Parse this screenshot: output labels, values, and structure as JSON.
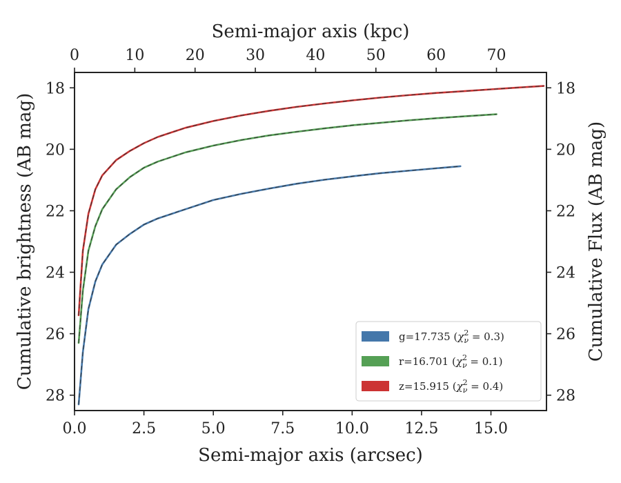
{
  "chart_data": {
    "type": "line",
    "xlabel": "Semi-major axis (arcsec)",
    "x2label": "Semi-major axis (kpc)",
    "ylabel": "Cumulative brightness (AB mag)",
    "y2label": "Cumulative Flux (AB mag)",
    "xlim": [
      0,
      17.0
    ],
    "x2lim": [
      0,
      78.3
    ],
    "ylim": [
      28.5,
      17.5
    ],
    "y_inverted": true,
    "x_ticks": [
      "0.0",
      "2.5",
      "5.0",
      "7.5",
      "10.0",
      "12.5",
      "15.0"
    ],
    "x2_ticks": [
      "0",
      "10",
      "20",
      "30",
      "40",
      "50",
      "60",
      "70"
    ],
    "y_ticks": [
      "18",
      "20",
      "22",
      "24",
      "26",
      "28"
    ],
    "legend_position": "lower right",
    "grid": false,
    "series": [
      {
        "name": "g=17.735 ($\\chi^2_\\nu = 0.3$)",
        "color": "#4477aa",
        "x": [
          0.15,
          0.3,
          0.5,
          0.75,
          1.0,
          1.5,
          2.0,
          2.5,
          3.0,
          4.0,
          5.0,
          6.0,
          7.0,
          8.0,
          9.0,
          10.0,
          11.0,
          12.0,
          13.0,
          13.9
        ],
        "y": [
          28.3,
          26.6,
          25.2,
          24.3,
          23.75,
          23.1,
          22.75,
          22.45,
          22.25,
          21.95,
          21.65,
          21.45,
          21.28,
          21.12,
          20.99,
          20.88,
          20.78,
          20.7,
          20.62,
          20.55
        ]
      },
      {
        "name": "r=16.701 ($\\chi^2_\\nu = 0.1$)",
        "color": "#55a055",
        "x": [
          0.15,
          0.3,
          0.5,
          0.75,
          1.0,
          1.5,
          2.0,
          2.5,
          3.0,
          4.0,
          5.0,
          6.0,
          7.0,
          8.0,
          9.0,
          10.0,
          11.0,
          12.0,
          13.0,
          14.0,
          15.2
        ],
        "y": [
          26.3,
          24.6,
          23.3,
          22.5,
          21.95,
          21.3,
          20.9,
          20.6,
          20.4,
          20.1,
          19.88,
          19.7,
          19.55,
          19.43,
          19.32,
          19.22,
          19.14,
          19.06,
          18.99,
          18.93,
          18.86
        ]
      },
      {
        "name": "z=15.915 ($\\chi^2_\\nu = 0.4$)",
        "color": "#cc3333",
        "x": [
          0.15,
          0.3,
          0.5,
          0.75,
          1.0,
          1.5,
          2.0,
          2.5,
          3.0,
          4.0,
          5.0,
          6.0,
          7.0,
          8.0,
          9.0,
          10.0,
          11.0,
          12.0,
          13.0,
          14.0,
          15.0,
          16.0,
          16.9
        ],
        "y": [
          25.4,
          23.3,
          22.1,
          21.3,
          20.85,
          20.35,
          20.05,
          19.8,
          19.6,
          19.3,
          19.08,
          18.9,
          18.75,
          18.62,
          18.51,
          18.41,
          18.32,
          18.24,
          18.17,
          18.11,
          18.05,
          17.99,
          17.94
        ]
      }
    ]
  },
  "legend_labels": [
    {
      "prefix": "g=17.735 (",
      "sup": "2",
      "sub": "ν",
      "suffix": " = 0.3)"
    },
    {
      "prefix": "r=16.701 (",
      "sup": "2",
      "sub": "ν",
      "suffix": " = 0.1)"
    },
    {
      "prefix": "z=15.915 (",
      "sup": "2",
      "sub": "ν",
      "suffix": " = 0.4)"
    }
  ]
}
